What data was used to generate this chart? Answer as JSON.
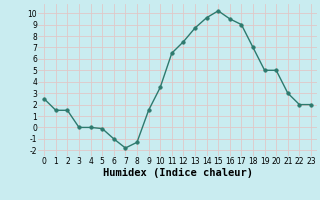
{
  "x": [
    0,
    1,
    2,
    3,
    4,
    5,
    6,
    7,
    8,
    9,
    10,
    11,
    12,
    13,
    14,
    15,
    16,
    17,
    18,
    19,
    20,
    21,
    22,
    23
  ],
  "y": [
    2.5,
    1.5,
    1.5,
    0.0,
    0.0,
    -0.1,
    -1.0,
    -1.8,
    -1.3,
    1.5,
    3.5,
    6.5,
    7.5,
    8.7,
    9.6,
    10.2,
    9.5,
    9.0,
    7.0,
    5.0,
    5.0,
    3.0,
    2.0,
    2.0
  ],
  "line_color": "#2d7a6e",
  "marker_color": "#2d7a6e",
  "bg_color": "#c9ecf0",
  "grid_color": "#e0c8c8",
  "xlabel": "Humidex (Indice chaleur)",
  "xlim": [
    -0.5,
    23.5
  ],
  "ylim": [
    -2.5,
    10.8
  ],
  "yticks": [
    -2,
    -1,
    0,
    1,
    2,
    3,
    4,
    5,
    6,
    7,
    8,
    9,
    10
  ],
  "xticks": [
    0,
    1,
    2,
    3,
    4,
    5,
    6,
    7,
    8,
    9,
    10,
    11,
    12,
    13,
    14,
    15,
    16,
    17,
    18,
    19,
    20,
    21,
    22,
    23
  ],
  "marker_size": 2.5,
  "line_width": 1.0,
  "tick_fontsize": 5.5,
  "xlabel_fontsize": 7.5
}
